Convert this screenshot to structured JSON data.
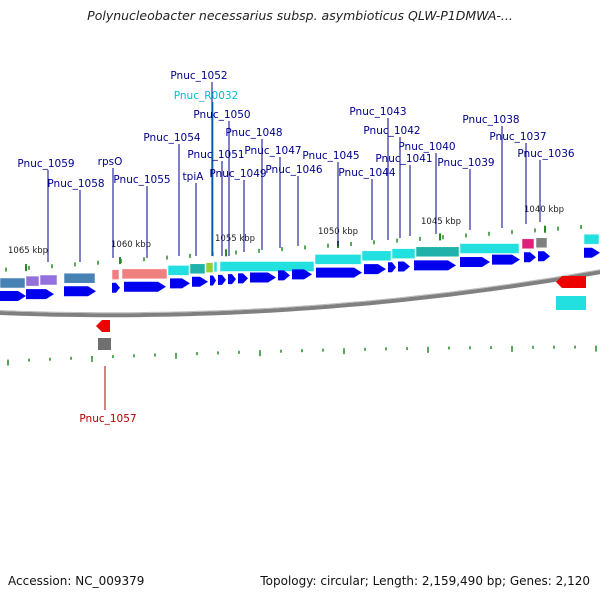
{
  "header": {
    "title": "Polynucleobacter necessarius subsp. asymbioticus QLW-P1DMWA-..."
  },
  "footer": {
    "accession": "Accession: NC_009379",
    "topology": "Topology: circular; Length: 2,159,490 bp; Genes: 2,120"
  },
  "colors": {
    "gene_label": "#00008b",
    "rna_label": "#00bcd4",
    "reverse_label": "#b40000",
    "forward_arrow": "#0000ee",
    "reverse_arrow": "#ee0000",
    "cog_cyan": "#22e0e0",
    "cog_pink": "#f08080",
    "cog_purple": "#9370db",
    "cog_steel": "#4682b4",
    "backbone": "#808080"
  },
  "kbp_ticks": [
    "1065 kbp",
    "1060 kbp",
    "1055 kbp",
    "1050 kbp",
    "1045 kbp",
    "1040 kbp"
  ],
  "gene_labels": [
    {
      "name": "Pnuc_1052",
      "kind": "gene"
    },
    {
      "name": "Pnuc_R0032",
      "kind": "rna"
    },
    {
      "name": "Pnuc_1050",
      "kind": "gene"
    },
    {
      "name": "Pnuc_1054",
      "kind": "gene"
    },
    {
      "name": "Pnuc_1048",
      "kind": "gene"
    },
    {
      "name": "Pnuc_1051",
      "kind": "gene"
    },
    {
      "name": "Pnuc_1047",
      "kind": "gene"
    },
    {
      "name": "Pnuc_1059",
      "kind": "gene"
    },
    {
      "name": "rpsO",
      "kind": "gene"
    },
    {
      "name": "Pnuc_1045",
      "kind": "gene"
    },
    {
      "name": "Pnuc_1046",
      "kind": "gene"
    },
    {
      "name": "Pnuc_1049",
      "kind": "gene"
    },
    {
      "name": "tpiA",
      "kind": "gene"
    },
    {
      "name": "Pnuc_1058",
      "kind": "gene"
    },
    {
      "name": "Pnuc_1055",
      "kind": "gene"
    },
    {
      "name": "Pnuc_1043",
      "kind": "gene"
    },
    {
      "name": "Pnuc_1042",
      "kind": "gene"
    },
    {
      "name": "Pnuc_1040",
      "kind": "gene"
    },
    {
      "name": "Pnuc_1041",
      "kind": "gene"
    },
    {
      "name": "Pnuc_1044",
      "kind": "gene"
    },
    {
      "name": "Pnuc_1038",
      "kind": "gene"
    },
    {
      "name": "Pnuc_1037",
      "kind": "gene"
    },
    {
      "name": "Pnuc_1039",
      "kind": "gene"
    },
    {
      "name": "Pnuc_1036",
      "kind": "gene"
    },
    {
      "name": "Pnuc_1057",
      "kind": "reverse"
    }
  ]
}
